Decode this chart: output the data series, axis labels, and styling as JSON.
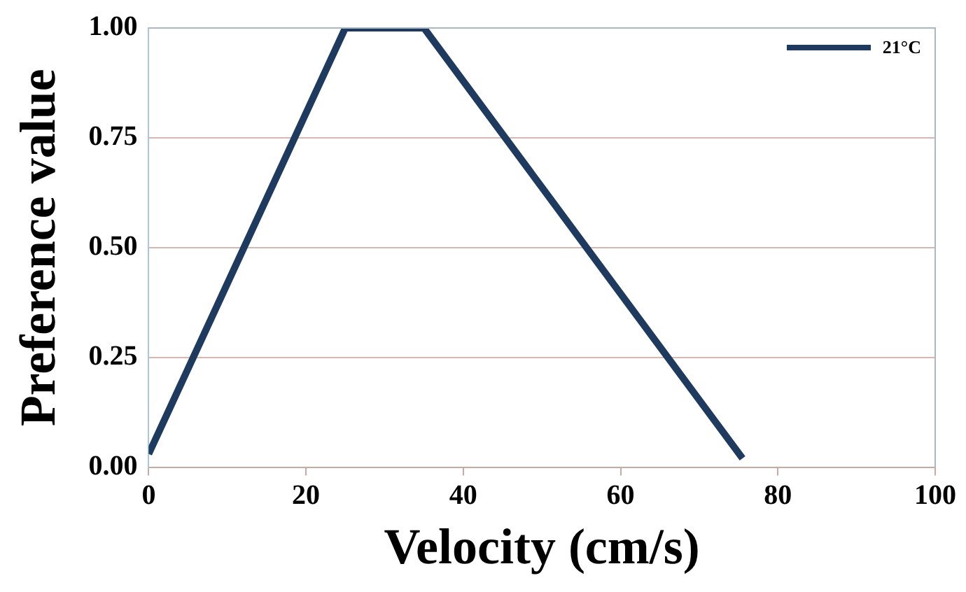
{
  "chart_data": {
    "type": "line",
    "xlabel": "Velocity (cm/s)",
    "ylabel": "Preference value",
    "xlim": [
      0,
      100
    ],
    "xticks": [
      0,
      20,
      40,
      60,
      80,
      100
    ],
    "ylim": [
      0,
      1
    ],
    "yticks": [
      {
        "value": 0,
        "label": "0.00"
      },
      {
        "value": 0.25,
        "label": "0.25"
      },
      {
        "value": 0.5,
        "label": "0.50"
      },
      {
        "value": 0.75,
        "label": "0.75"
      },
      {
        "value": 1,
        "label": "1.00"
      }
    ],
    "grid": "y",
    "legend": "top right",
    "marker": "none",
    "line_style": "solid",
    "series": [
      {
        "name": "21°C",
        "color": "#1f3a5f",
        "x": [
          0,
          25,
          35,
          75.5
        ],
        "values": [
          0.03,
          1,
          1,
          0.02
        ]
      }
    ]
  }
}
